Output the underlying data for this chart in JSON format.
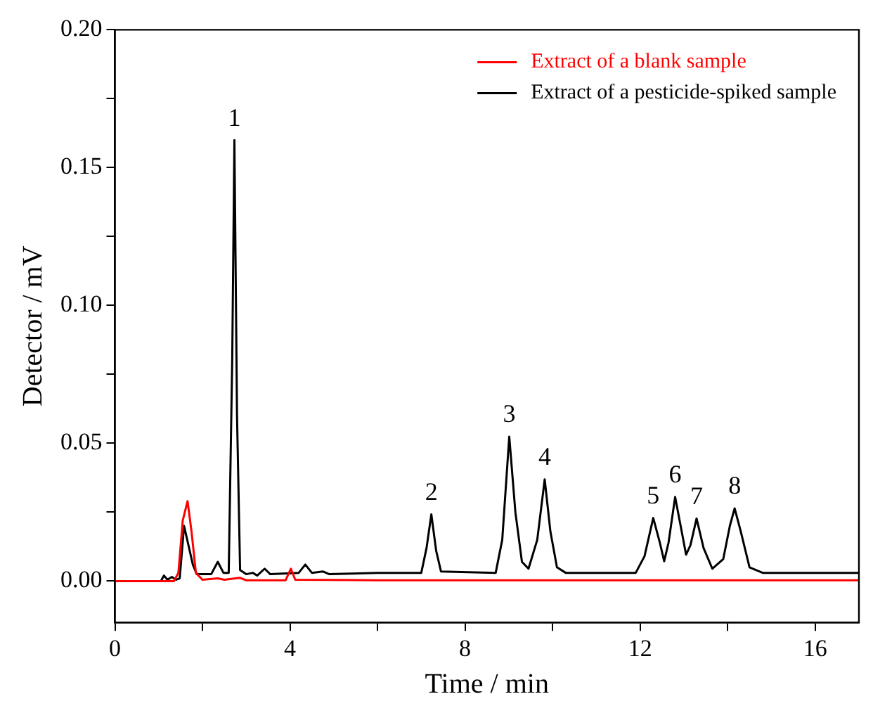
{
  "chart_data": {
    "type": "line",
    "xlabel": "Time / min",
    "ylabel": "Detector / mV",
    "xlim": [
      0,
      17
    ],
    "xticks": [
      0,
      {
        "value": 2,
        "label": null
      },
      4,
      {
        "value": 6,
        "label": null
      },
      8,
      {
        "value": 10,
        "label": null
      },
      12,
      {
        "value": 14,
        "label": null
      },
      16
    ],
    "ylim": [
      -0.015,
      0.2
    ],
    "yticks": [
      {
        "value": 0,
        "label": "0.00"
      },
      {
        "value": 0.025,
        "label": null
      },
      0.05,
      {
        "value": 0.075,
        "label": null
      },
      {
        "value": 0.1,
        "label": "0.10"
      },
      {
        "value": 0.125,
        "label": null
      },
      0.15,
      {
        "value": 0.175,
        "label": null
      },
      {
        "value": 0.2,
        "label": "0.20"
      }
    ],
    "grid": false,
    "legend": "top right",
    "marker": "none",
    "line_style": "solid",
    "series": [
      {
        "name": "Extract of a blank sample",
        "color": "#ff0000",
        "x": [
          0,
          1.35,
          1.45,
          1.55,
          1.66,
          1.75,
          1.85,
          2.0,
          2.35,
          2.5,
          2.85,
          3.0,
          3.9,
          4.02,
          4.12,
          6,
          17
        ],
        "values": [
          0,
          0,
          0.003,
          0.022,
          0.029,
          0.018,
          0.003,
          0.0005,
          0.001,
          0.0005,
          0.0012,
          0.0003,
          0.0003,
          0.0045,
          0.0005,
          0.0003,
          0.0003
        ]
      },
      {
        "name": "Extract of a pesticide-spiked sample",
        "color": "#000000",
        "x": [
          0,
          1.05,
          1.12,
          1.2,
          1.3,
          1.4,
          1.48,
          1.58,
          1.68,
          1.78,
          1.87,
          2.2,
          2.35,
          2.48,
          2.6,
          2.68,
          2.73,
          2.79,
          2.86,
          3.0,
          3.15,
          3.25,
          3.42,
          3.55,
          4.2,
          4.35,
          4.5,
          4.75,
          4.9,
          6.0,
          7.0,
          7.12,
          7.23,
          7.34,
          7.45,
          8.7,
          8.85,
          9.01,
          9.15,
          9.3,
          9.45,
          9.65,
          9.82,
          9.95,
          10.1,
          10.3,
          11.9,
          12.1,
          12.3,
          12.45,
          12.55,
          12.65,
          12.8,
          12.95,
          13.05,
          13.15,
          13.29,
          13.45,
          13.65,
          13.9,
          14.05,
          14.16,
          14.3,
          14.5,
          14.8,
          17
        ],
        "values": [
          0,
          0,
          0.002,
          0.0005,
          0.0015,
          0.0005,
          0.001,
          0.02,
          0.013,
          0.006,
          0.0025,
          0.0025,
          0.007,
          0.003,
          0.003,
          0.08,
          0.16,
          0.06,
          0.004,
          0.0025,
          0.003,
          0.002,
          0.0045,
          0.0025,
          0.003,
          0.006,
          0.003,
          0.0035,
          0.0025,
          0.003,
          0.003,
          0.012,
          0.0242,
          0.011,
          0.0035,
          0.003,
          0.015,
          0.0524,
          0.025,
          0.007,
          0.0045,
          0.015,
          0.0369,
          0.018,
          0.005,
          0.003,
          0.003,
          0.009,
          0.0229,
          0.014,
          0.0072,
          0.014,
          0.0305,
          0.018,
          0.0096,
          0.013,
          0.0227,
          0.012,
          0.0045,
          0.008,
          0.02,
          0.0264,
          0.018,
          0.005,
          0.003,
          0.003
        ]
      }
    ],
    "annotations": [
      {
        "text": "1",
        "x": 2.73,
        "y": 0.16
      },
      {
        "text": "2",
        "x": 7.23,
        "y": 0.0242
      },
      {
        "text": "3",
        "x": 9.01,
        "y": 0.0524
      },
      {
        "text": "4",
        "x": 9.82,
        "y": 0.0369
      },
      {
        "text": "5",
        "x": 12.3,
        "y": 0.0229
      },
      {
        "text": "6",
        "x": 12.8,
        "y": 0.0305
      },
      {
        "text": "7",
        "x": 13.29,
        "y": 0.0227
      },
      {
        "text": "8",
        "x": 14.16,
        "y": 0.0264
      }
    ]
  }
}
